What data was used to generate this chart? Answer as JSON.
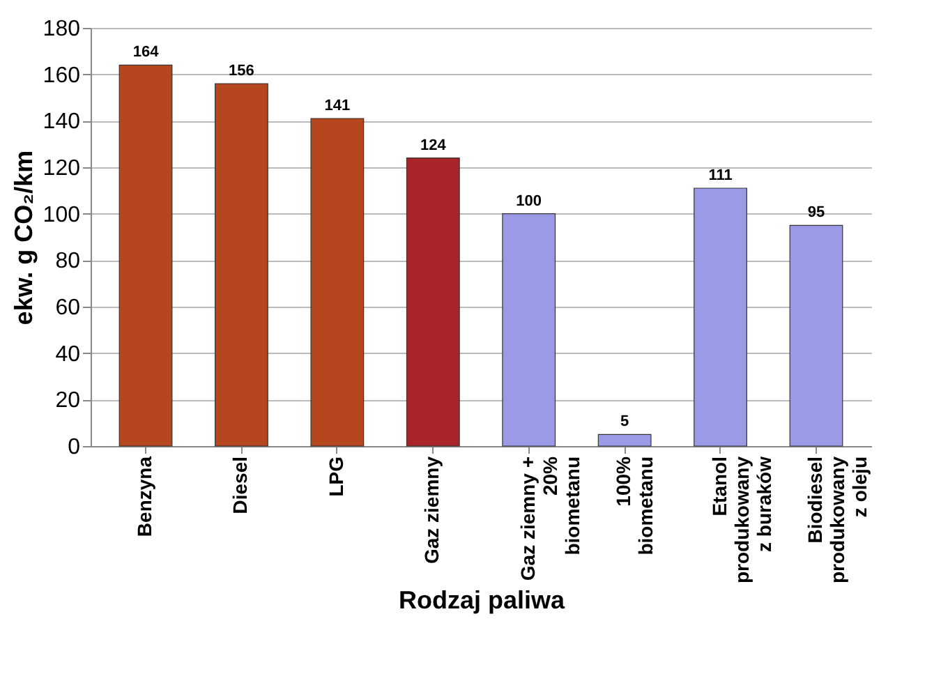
{
  "chart_data": {
    "type": "bar",
    "categories": [
      "Benzyna",
      "Diesel",
      "LPG",
      "Gaz ziemny",
      "Gaz ziemny + 20% biometanu",
      "100% biometanu",
      "Etanol produkowany z buraków",
      "Biodiesel produkowany z oleju"
    ],
    "values": [
      164,
      156,
      141,
      124,
      100,
      5,
      111,
      95
    ],
    "colors": [
      "#b5461e",
      "#b5461e",
      "#b5461e",
      "#a8262a",
      "#9a9ae6",
      "#9a9ae6",
      "#9a9ae6",
      "#9a9ae6"
    ],
    "xlabel": "Rodzaj paliwa",
    "ylabel": "ekw. g CO₂/km",
    "ylim": [
      0,
      180
    ],
    "yticks": [
      0,
      20,
      40,
      60,
      80,
      100,
      120,
      140,
      160,
      180
    ],
    "grid": "y",
    "data_labels": true
  }
}
